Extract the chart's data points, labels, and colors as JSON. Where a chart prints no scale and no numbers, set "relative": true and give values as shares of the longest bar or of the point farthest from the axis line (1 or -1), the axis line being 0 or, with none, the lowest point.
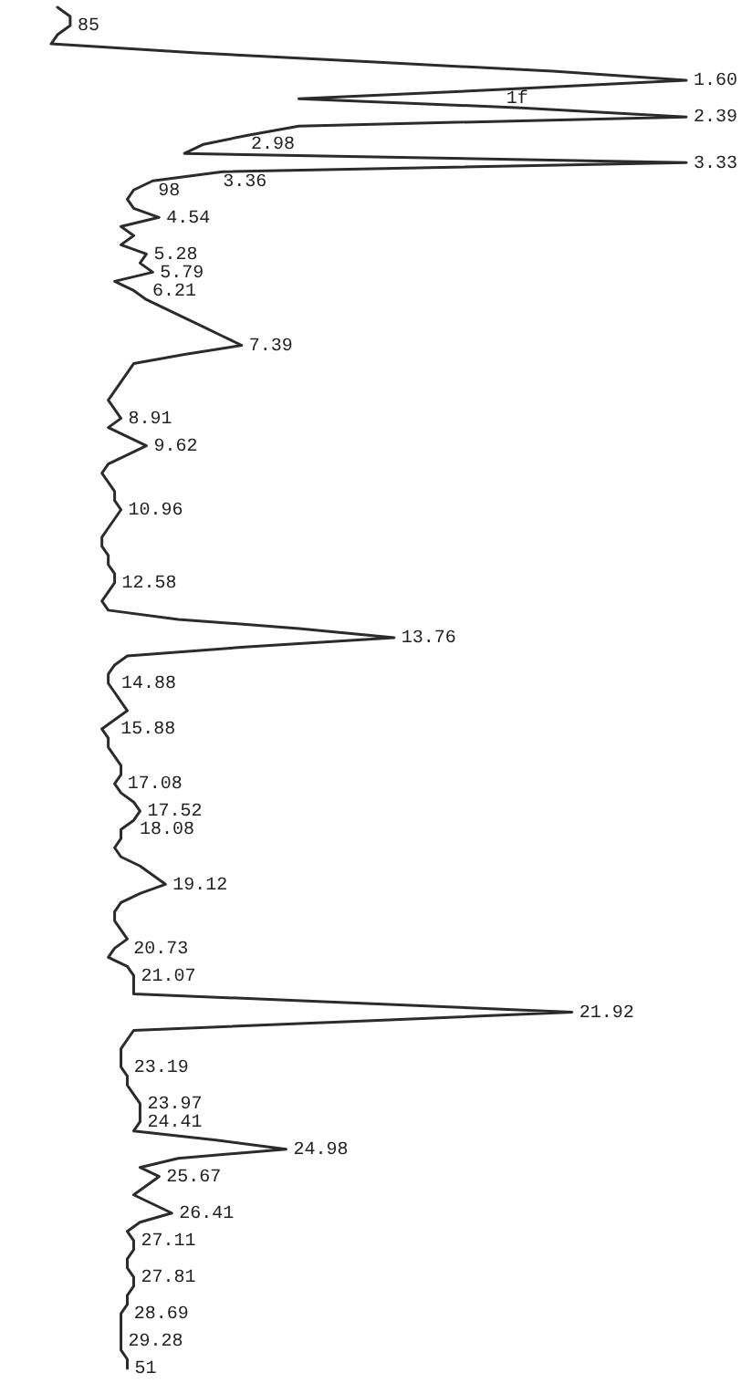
{
  "chart_data": {
    "type": "line",
    "orientation": "horizontal",
    "relative": true,
    "color": "#2b2b2b",
    "categories": [
      null,
      null,
      "85",
      null,
      null,
      null,
      null,
      null,
      "1.60",
      null,
      "1f",
      null,
      "2.39",
      null,
      null,
      "2.98",
      null,
      "3.33",
      null,
      "3.36",
      "98",
      null,
      null,
      "4.54",
      null,
      null,
      null,
      "5.28",
      null,
      "5.79",
      null,
      "6.21",
      null,
      null,
      null,
      null,
      null,
      "7.39",
      null,
      null,
      null,
      null,
      null,
      null,
      null,
      "8.91",
      null,
      null,
      "9.62",
      null,
      null,
      null,
      null,
      null,
      null,
      "10.96",
      null,
      null,
      null,
      null,
      null,
      null,
      null,
      "12.58",
      null,
      null,
      null,
      null,
      null,
      "13.76",
      null,
      null,
      null,
      null,
      "14.88",
      null,
      null,
      null,
      null,
      "15.88",
      null,
      null,
      null,
      null,
      null,
      "17.08",
      null,
      null,
      "17.52",
      null,
      "18.08",
      null,
      null,
      null,
      null,
      null,
      "19.12",
      null,
      null,
      null,
      null,
      null,
      null,
      "20.73",
      null,
      null,
      "21.07",
      null,
      null,
      null,
      "21.92",
      null,
      null,
      null,
      null,
      null,
      "23.19",
      null,
      null,
      null,
      "23.97",
      null,
      "24.41",
      null,
      null,
      "24.98",
      null,
      null,
      "25.67",
      null,
      null,
      null,
      "26.41",
      null,
      null,
      "27.11",
      null,
      null,
      null,
      "27.81",
      null,
      null,
      null,
      "28.69",
      null,
      null,
      "29.28",
      null,
      null,
      "51"
    ],
    "values": [
      0.01,
      0.03,
      0.03,
      0.01,
      0.0,
      0.23,
      0.51,
      0.79,
      1.0,
      0.71,
      0.39,
      0.74,
      1.0,
      0.39,
      0.31,
      0.24,
      0.21,
      1.0,
      0.27,
      0.16,
      0.13,
      0.12,
      0.13,
      0.17,
      0.11,
      0.13,
      0.11,
      0.15,
      0.14,
      0.16,
      0.1,
      0.13,
      0.15,
      0.18,
      0.21,
      0.24,
      0.27,
      0.3,
      0.21,
      0.13,
      0.12,
      0.11,
      0.1,
      0.09,
      0.1,
      0.11,
      0.09,
      0.12,
      0.15,
      0.12,
      0.09,
      0.08,
      0.09,
      0.1,
      0.1,
      0.11,
      0.1,
      0.09,
      0.08,
      0.08,
      0.09,
      0.09,
      0.1,
      0.1,
      0.09,
      0.08,
      0.09,
      0.2,
      0.39,
      0.54,
      0.31,
      0.12,
      0.1,
      0.09,
      0.09,
      0.1,
      0.11,
      0.12,
      0.1,
      0.08,
      0.09,
      0.09,
      0.1,
      0.11,
      0.11,
      0.1,
      0.11,
      0.13,
      0.14,
      0.13,
      0.11,
      0.11,
      0.1,
      0.11,
      0.14,
      0.16,
      0.18,
      0.14,
      0.11,
      0.1,
      0.1,
      0.11,
      0.12,
      0.1,
      0.09,
      0.12,
      0.13,
      0.13,
      0.13,
      0.48,
      0.82,
      0.48,
      0.13,
      0.12,
      0.11,
      0.11,
      0.11,
      0.12,
      0.12,
      0.13,
      0.14,
      0.14,
      0.14,
      0.13,
      0.26,
      0.37,
      0.2,
      0.14,
      0.17,
      0.15,
      0.13,
      0.16,
      0.19,
      0.14,
      0.12,
      0.13,
      0.13,
      0.12,
      0.12,
      0.13,
      0.13,
      0.12,
      0.12,
      0.11,
      0.11,
      0.11,
      0.11,
      0.11,
      0.12,
      0.12
    ]
  }
}
